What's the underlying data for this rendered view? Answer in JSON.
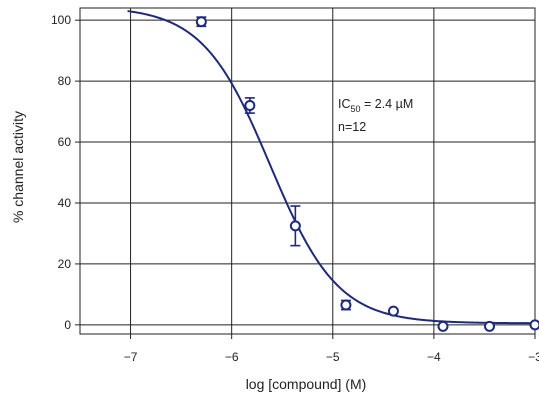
{
  "chart_data": {
    "type": "scatter",
    "xlabel": "log [compound] (M)",
    "ylabel": "% channel activity",
    "xlim": [
      -7.5,
      -3
    ],
    "ylim": [
      -3,
      104
    ],
    "grid": true,
    "x_ticks": [
      -7,
      -6,
      -5,
      -4,
      -3
    ],
    "x_tick_labels": [
      "−7",
      "−6",
      "−5",
      "−4",
      "−3"
    ],
    "y_ticks": [
      0,
      20,
      40,
      60,
      80,
      100
    ],
    "y_tick_labels": [
      "0",
      "20",
      "40",
      "60",
      "80",
      "100"
    ],
    "points": [
      {
        "x": -6.3,
        "y": 99.5,
        "err": 1.5
      },
      {
        "x": -5.82,
        "y": 72,
        "err": 2.5
      },
      {
        "x": -5.37,
        "y": 32.5,
        "err": 6.5
      },
      {
        "x": -4.87,
        "y": 6.5,
        "err": 1.5
      },
      {
        "x": -4.4,
        "y": 4.5,
        "err": 0
      },
      {
        "x": -3.91,
        "y": -0.5,
        "err": 0
      },
      {
        "x": -3.45,
        "y": -0.5,
        "err": 0
      },
      {
        "x": -3.0,
        "y": 0,
        "err": 0
      }
    ],
    "fit": {
      "type": "hill",
      "top": 104.5,
      "bottom": 0.5,
      "log_ic50": -5.62,
      "hill_slope": 1.3
    },
    "annotation": {
      "prefix": "IC",
      "subscript": "50",
      "suffix": " = 2.4 µM",
      "n_label": "n=12"
    },
    "colors": {
      "series": "#1f2a7a",
      "grid": "#222222"
    }
  }
}
